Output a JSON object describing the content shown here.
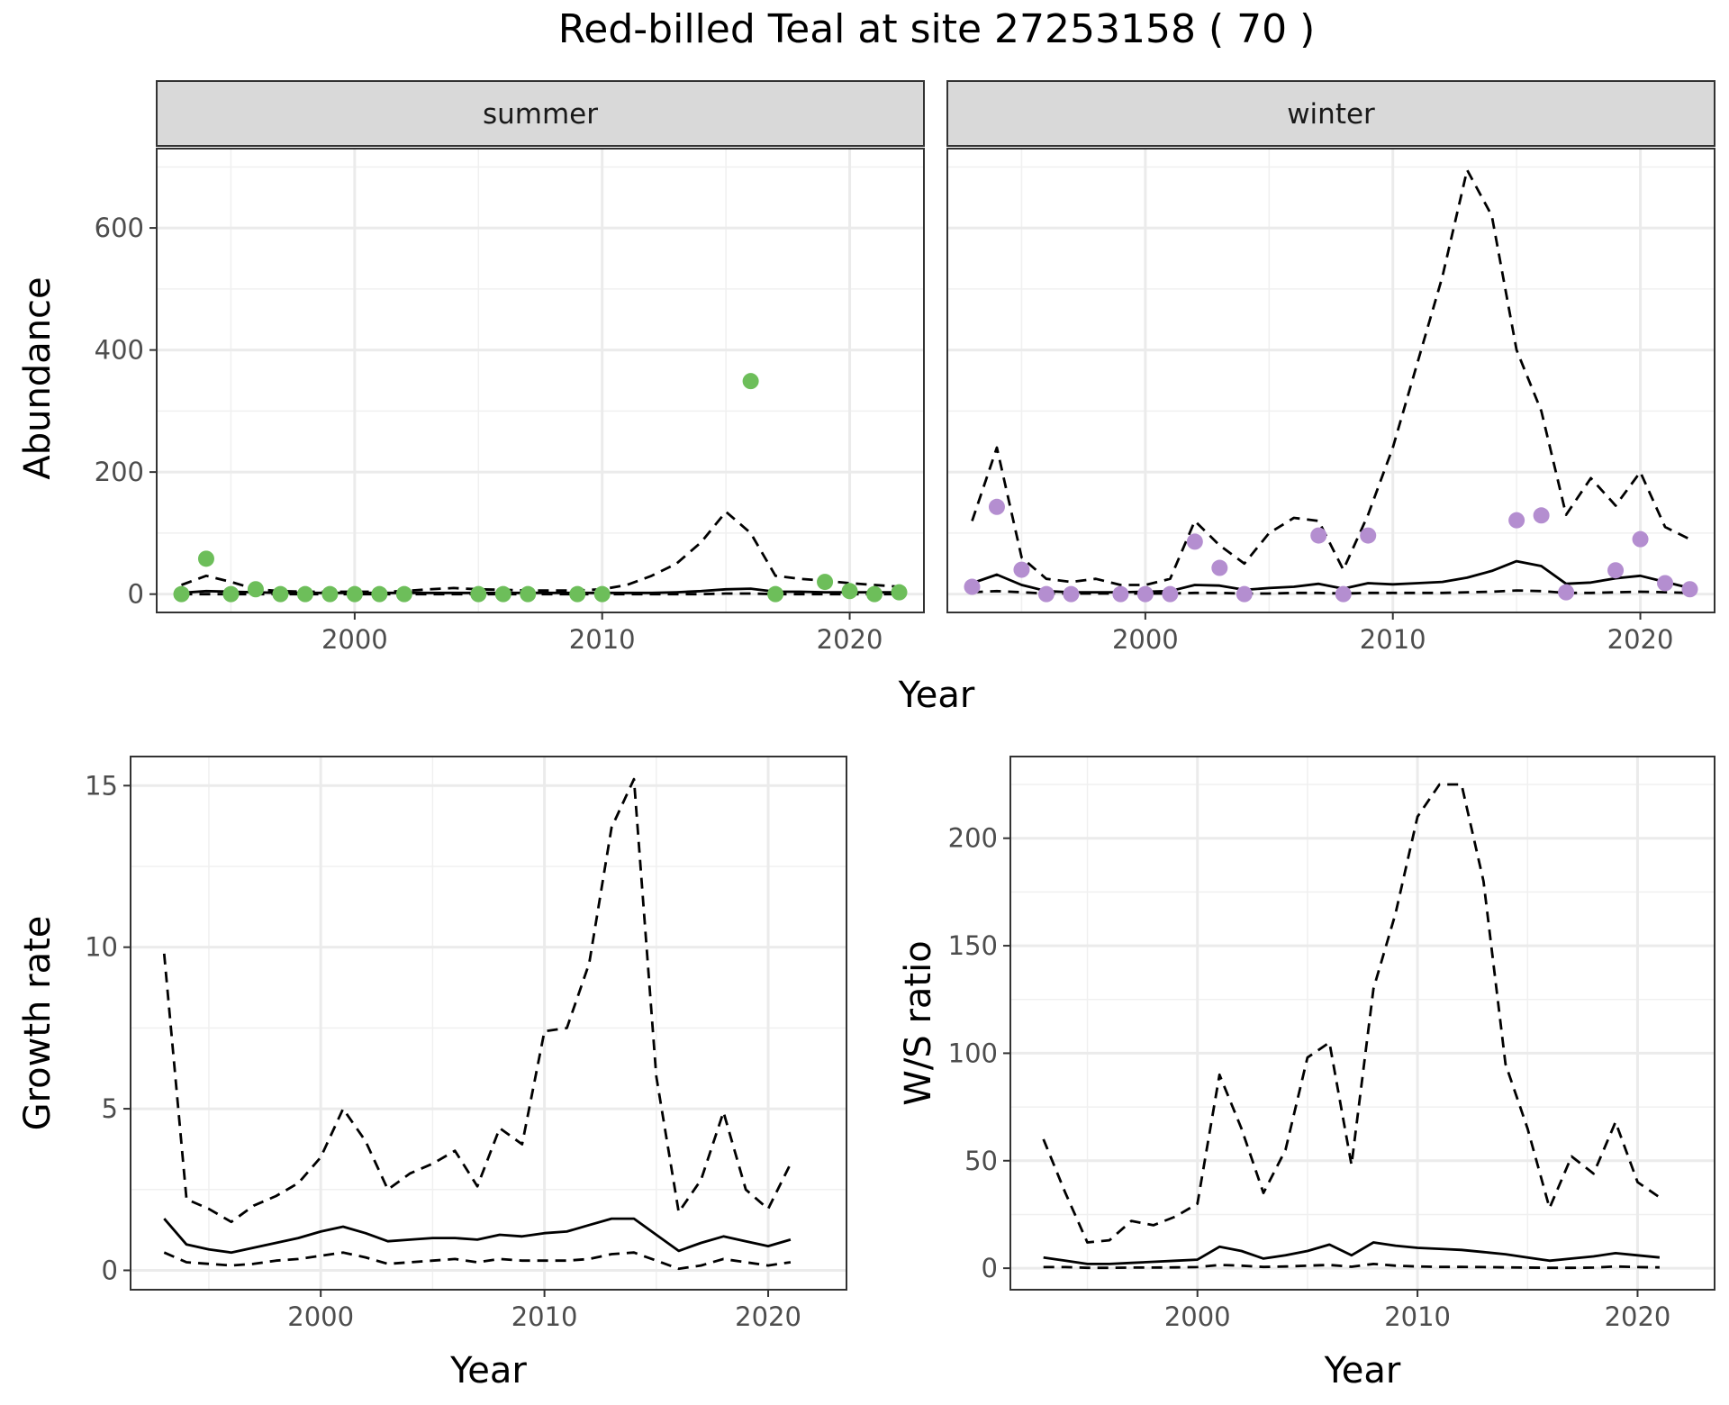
{
  "title": "Red-billed Teal at site 27253158 ( 70 )",
  "chart_data": [
    {
      "type": "line",
      "panel": "summer",
      "xlabel": "Year",
      "ylabel": "Abundance",
      "xlim": [
        1992,
        2023
      ],
      "ylim": [
        -30,
        730
      ],
      "xticks": [
        2000,
        2010,
        2020
      ],
      "yticks": [
        0,
        200,
        400,
        600
      ],
      "grid": true,
      "points_color": "#6dbe5a",
      "points": {
        "x": [
          1993,
          1994,
          1995,
          1996,
          1997,
          1998,
          1999,
          2000,
          2001,
          2002,
          2005,
          2006,
          2007,
          2009,
          2010,
          2016,
          2017,
          2019,
          2020,
          2021,
          2022
        ],
        "y": [
          0,
          58,
          0,
          8,
          0,
          0,
          0,
          0,
          0,
          0,
          0,
          0,
          0,
          0,
          0,
          349,
          0,
          20,
          5,
          0,
          3
        ]
      },
      "series": [
        {
          "style": "solid",
          "x": [
            1993,
            1994,
            1995,
            1996,
            1997,
            1998,
            1999,
            2000,
            2001,
            2002,
            2003,
            2004,
            2005,
            2006,
            2007,
            2008,
            2009,
            2010,
            2011,
            2012,
            2013,
            2014,
            2015,
            2016,
            2017,
            2018,
            2019,
            2020,
            2021,
            2022
          ],
          "y": [
            2,
            5,
            4,
            3,
            2,
            2,
            2,
            2,
            2,
            2,
            2,
            2,
            2,
            2,
            2,
            2,
            2,
            2,
            2,
            2,
            3,
            5,
            8,
            9,
            4,
            4,
            3,
            3,
            3,
            3
          ]
        },
        {
          "style": "dashed",
          "x": [
            1993,
            1994,
            1995,
            1996,
            1997,
            1998,
            1999,
            2000,
            2001,
            2002,
            2003,
            2004,
            2005,
            2006,
            2007,
            2008,
            2009,
            2010,
            2011,
            2012,
            2013,
            2014,
            2015,
            2016,
            2017,
            2018,
            2019,
            2020,
            2021,
            2022
          ],
          "y": [
            15,
            30,
            20,
            8,
            5,
            4,
            4,
            4,
            4,
            5,
            8,
            10,
            8,
            7,
            6,
            6,
            6,
            8,
            15,
            30,
            50,
            85,
            135,
            100,
            30,
            25,
            22,
            18,
            15,
            12
          ]
        },
        {
          "style": "dashed",
          "x": [
            1993,
            1994,
            1995,
            1996,
            1997,
            1998,
            1999,
            2000,
            2001,
            2002,
            2003,
            2004,
            2005,
            2006,
            2007,
            2008,
            2009,
            2010,
            2011,
            2012,
            2013,
            2014,
            2015,
            2016,
            2017,
            2018,
            2019,
            2020,
            2021,
            2022
          ],
          "y": [
            0,
            0,
            0,
            0,
            0,
            0,
            0,
            0,
            0,
            0,
            0,
            0,
            0,
            0,
            0,
            0,
            0,
            0,
            0,
            0,
            0,
            0,
            1,
            1,
            0,
            0,
            0,
            0,
            0,
            0
          ]
        }
      ]
    },
    {
      "type": "line",
      "panel": "winter",
      "xlabel": "Year",
      "ylabel": "Abundance",
      "xlim": [
        1992,
        2023
      ],
      "ylim": [
        -30,
        730
      ],
      "xticks": [
        2000,
        2010,
        2020
      ],
      "yticks": [
        0,
        200,
        400,
        600
      ],
      "grid": true,
      "points_color": "#b48ed0",
      "points": {
        "x": [
          1993,
          1994,
          1995,
          1996,
          1997,
          1999,
          2000,
          2001,
          2002,
          2003,
          2004,
          2007,
          2008,
          2009,
          2015,
          2016,
          2017,
          2019,
          2020,
          2021,
          2022
        ],
        "y": [
          12,
          143,
          40,
          0,
          0,
          0,
          0,
          0,
          86,
          43,
          0,
          96,
          0,
          96,
          121,
          129,
          3,
          39,
          90,
          18,
          8
        ]
      },
      "series": [
        {
          "style": "solid",
          "x": [
            1993,
            1994,
            1995,
            1996,
            1997,
            1998,
            1999,
            2000,
            2001,
            2002,
            2003,
            2004,
            2005,
            2006,
            2007,
            2008,
            2009,
            2010,
            2011,
            2012,
            2013,
            2014,
            2015,
            2016,
            2017,
            2018,
            2019,
            2020,
            2021,
            2022
          ],
          "y": [
            18,
            32,
            15,
            5,
            3,
            3,
            3,
            4,
            5,
            15,
            14,
            7,
            10,
            12,
            17,
            9,
            18,
            16,
            18,
            20,
            27,
            38,
            54,
            46,
            17,
            19,
            26,
            30,
            20,
            10
          ]
        },
        {
          "style": "dashed",
          "x": [
            1993,
            1994,
            1995,
            1996,
            1997,
            1998,
            1999,
            2000,
            2001,
            2002,
            2003,
            2004,
            2005,
            2006,
            2007,
            2008,
            2009,
            2010,
            2011,
            2012,
            2013,
            2014,
            2015,
            2016,
            2017,
            2018,
            2019,
            2020,
            2021,
            2022
          ],
          "y": [
            120,
            240,
            60,
            25,
            20,
            25,
            15,
            15,
            25,
            120,
            80,
            50,
            100,
            125,
            120,
            40,
            130,
            240,
            380,
            520,
            695,
            620,
            400,
            300,
            130,
            190,
            145,
            200,
            110,
            90
          ]
        },
        {
          "style": "dashed",
          "x": [
            1993,
            1994,
            1995,
            1996,
            1997,
            1998,
            1999,
            2000,
            2001,
            2002,
            2003,
            2004,
            2005,
            2006,
            2007,
            2008,
            2009,
            2010,
            2011,
            2012,
            2013,
            2014,
            2015,
            2016,
            2017,
            2018,
            2019,
            2020,
            2021,
            2022
          ],
          "y": [
            3,
            5,
            3,
            1,
            1,
            1,
            1,
            1,
            1,
            2,
            2,
            1,
            1,
            2,
            2,
            1,
            2,
            2,
            2,
            2,
            3,
            4,
            6,
            5,
            2,
            2,
            3,
            4,
            3,
            2
          ]
        }
      ]
    },
    {
      "type": "line",
      "xlabel": "Year",
      "ylabel": "Growth rate",
      "xlim": [
        1991.5,
        2023.5
      ],
      "ylim": [
        -0.6,
        15.9
      ],
      "xticks": [
        2000,
        2010,
        2020
      ],
      "yticks": [
        0,
        5,
        10,
        15
      ],
      "grid": true,
      "series": [
        {
          "style": "solid",
          "x": [
            1993,
            1994,
            1995,
            1996,
            1997,
            1998,
            1999,
            2000,
            2001,
            2002,
            2003,
            2004,
            2005,
            2006,
            2007,
            2008,
            2009,
            2010,
            2011,
            2012,
            2013,
            2014,
            2015,
            2016,
            2017,
            2018,
            2019,
            2020,
            2021
          ],
          "y": [
            1.6,
            0.8,
            0.65,
            0.55,
            0.7,
            0.85,
            1.0,
            1.2,
            1.35,
            1.15,
            0.9,
            0.95,
            1.0,
            1.0,
            0.95,
            1.1,
            1.05,
            1.15,
            1.2,
            1.4,
            1.6,
            1.6,
            1.1,
            0.6,
            0.85,
            1.05,
            0.9,
            0.75,
            0.95
          ]
        },
        {
          "style": "dashed",
          "x": [
            1993,
            1994,
            1995,
            1996,
            1997,
            1998,
            1999,
            2000,
            2001,
            2002,
            2003,
            2004,
            2005,
            2006,
            2007,
            2008,
            2009,
            2010,
            2011,
            2012,
            2013,
            2014,
            2015,
            2016,
            2017,
            2018,
            2019,
            2020,
            2021
          ],
          "y": [
            9.8,
            2.2,
            1.9,
            1.5,
            2.0,
            2.3,
            2.7,
            3.5,
            5.0,
            4.0,
            2.5,
            3.0,
            3.3,
            3.7,
            2.6,
            4.4,
            3.9,
            7.4,
            7.5,
            9.5,
            13.7,
            15.2,
            6.0,
            1.8,
            2.8,
            4.9,
            2.5,
            1.9,
            3.3
          ]
        },
        {
          "style": "dashed",
          "x": [
            1993,
            1994,
            1995,
            1996,
            1997,
            1998,
            1999,
            2000,
            2001,
            2002,
            2003,
            2004,
            2005,
            2006,
            2007,
            2008,
            2009,
            2010,
            2011,
            2012,
            2013,
            2014,
            2015,
            2016,
            2017,
            2018,
            2019,
            2020,
            2021
          ],
          "y": [
            0.55,
            0.25,
            0.2,
            0.15,
            0.2,
            0.3,
            0.35,
            0.45,
            0.55,
            0.4,
            0.2,
            0.25,
            0.3,
            0.35,
            0.25,
            0.35,
            0.3,
            0.3,
            0.3,
            0.35,
            0.5,
            0.55,
            0.3,
            0.05,
            0.15,
            0.35,
            0.25,
            0.15,
            0.25
          ]
        }
      ]
    },
    {
      "type": "line",
      "xlabel": "Year",
      "ylabel": "W/S ratio",
      "xlim": [
        1991.5,
        2023.5
      ],
      "ylim": [
        -10,
        238
      ],
      "xticks": [
        2000,
        2010,
        2020
      ],
      "yticks": [
        0,
        50,
        100,
        150,
        200
      ],
      "grid": true,
      "series": [
        {
          "style": "solid",
          "x": [
            1993,
            1994,
            1995,
            1996,
            1997,
            1998,
            1999,
            2000,
            2001,
            2002,
            2003,
            2004,
            2005,
            2006,
            2007,
            2008,
            2009,
            2010,
            2011,
            2012,
            2013,
            2014,
            2015,
            2016,
            2017,
            2018,
            2019,
            2020,
            2021
          ],
          "y": [
            5,
            3.5,
            2,
            2,
            2.5,
            3,
            3.5,
            4,
            10,
            8,
            4.5,
            6,
            8,
            11,
            6,
            12,
            10.5,
            9.5,
            9,
            8.5,
            7.5,
            6.5,
            5,
            3.5,
            4.5,
            5.5,
            7,
            6,
            5
          ]
        },
        {
          "style": "dashed",
          "x": [
            1993,
            1994,
            1995,
            1996,
            1997,
            1998,
            1999,
            2000,
            2001,
            2002,
            2003,
            2004,
            2005,
            2006,
            2007,
            2008,
            2009,
            2010,
            2011,
            2012,
            2013,
            2014,
            2015,
            2016,
            2017,
            2018,
            2019,
            2020,
            2021
          ],
          "y": [
            60,
            35,
            12,
            13,
            22,
            20,
            24,
            30,
            90,
            65,
            35,
            55,
            98,
            105,
            48,
            130,
            165,
            210,
            225,
            225,
            180,
            95,
            65,
            28,
            52,
            44,
            68,
            40,
            33
          ]
        },
        {
          "style": "dashed",
          "x": [
            1993,
            1994,
            1995,
            1996,
            1997,
            1998,
            1999,
            2000,
            2001,
            2002,
            2003,
            2004,
            2005,
            2006,
            2007,
            2008,
            2009,
            2010,
            2011,
            2012,
            2013,
            2014,
            2015,
            2016,
            2017,
            2018,
            2019,
            2020,
            2021
          ],
          "y": [
            0.5,
            0.5,
            0.2,
            0.2,
            0.3,
            0.3,
            0.4,
            0.5,
            1.5,
            1.2,
            0.6,
            0.8,
            1.2,
            1.5,
            0.7,
            2.0,
            1.2,
            0.8,
            0.6,
            0.6,
            0.5,
            0.4,
            0.3,
            0.2,
            0.2,
            0.3,
            0.8,
            0.5,
            0.4
          ]
        }
      ]
    }
  ]
}
